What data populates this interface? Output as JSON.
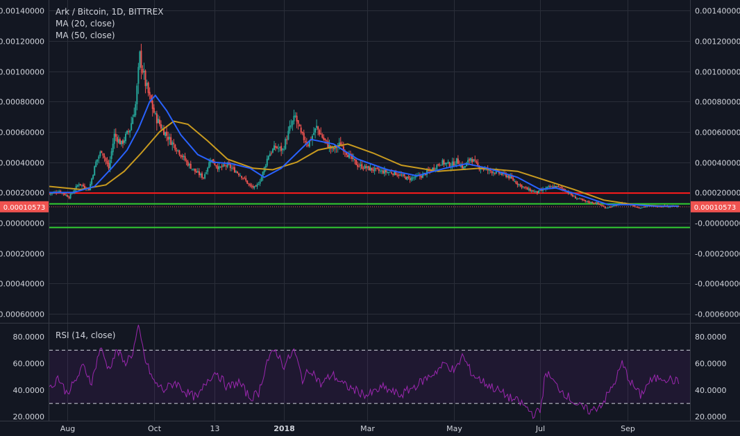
{
  "chart_data": {
    "type": "candlestick",
    "title": "Ark / Bitcoin, 1D, BITTREX",
    "indicators": [
      {
        "name": "MA (20, close)",
        "color": "#2962ff"
      },
      {
        "name": "MA (50, close)",
        "color": "#c99b1f"
      }
    ],
    "price_axis": {
      "ylim": [
        -0.00066,
        0.00147
      ],
      "ticks": [
        "0.00140000",
        "0.00120000",
        "0.00100000",
        "0.00080000",
        "0.00060000",
        "0.00040000",
        "0.00020000",
        "-0.00000000",
        "-0.00020000",
        "-0.00040000",
        "-0.00060000"
      ],
      "tick_values": [
        0.0014,
        0.0012,
        0.001,
        0.0008,
        0.0006,
        0.0004,
        0.0002,
        0,
        -0.0002,
        -0.0004,
        -0.0006
      ]
    },
    "time_axis": {
      "start": "2017-07-19",
      "end": "2018-10-15",
      "labels": [
        {
          "label": "Aug",
          "date": "2017-08-01"
        },
        {
          "label": "Oct",
          "date": "2017-10-01"
        },
        {
          "label": "13",
          "date": "2017-11-13"
        },
        {
          "label": "2018",
          "date": "2018-01-01",
          "bold": true
        },
        {
          "label": "Mar",
          "date": "2018-03-01"
        },
        {
          "label": "May",
          "date": "2018-05-01"
        },
        {
          "label": "Jul",
          "date": "2018-07-01"
        },
        {
          "label": "Sep",
          "date": "2018-09-01"
        }
      ]
    },
    "current_price": {
      "value": 0.00010573,
      "label": "0.00010573",
      "color": "#ef5350"
    },
    "colors": {
      "up": "#26a69a",
      "down": "#ef5350",
      "ma20": "#2962ff",
      "ma50": "#c99b1f",
      "rsi": "#9c27b0",
      "background": "#131722",
      "grid": "#2a2e39"
    },
    "horizontal_lines": [
      {
        "value": 0.000196,
        "color": "#ff1a1a"
      },
      {
        "value": 0.000125,
        "color": "#32cd32"
      },
      {
        "value": -3.05e-05,
        "color": "#32cd32"
      }
    ],
    "close_path": [
      {
        "date": "2017-07-19",
        "price": 0.00019
      },
      {
        "date": "2017-07-26",
        "price": 0.00021
      },
      {
        "date": "2017-08-02",
        "price": 0.00017
      },
      {
        "date": "2017-08-09",
        "price": 0.00026
      },
      {
        "date": "2017-08-16",
        "price": 0.00022
      },
      {
        "date": "2017-08-21",
        "price": 0.0004
      },
      {
        "date": "2017-08-25",
        "price": 0.00048
      },
      {
        "date": "2017-08-30",
        "price": 0.00036
      },
      {
        "date": "2017-09-03",
        "price": 0.00058
      },
      {
        "date": "2017-09-08",
        "price": 0.00052
      },
      {
        "date": "2017-09-14",
        "price": 0.00062
      },
      {
        "date": "2017-09-18",
        "price": 0.00078
      },
      {
        "date": "2017-09-21",
        "price": 0.0011
      },
      {
        "date": "2017-09-25",
        "price": 0.00092
      },
      {
        "date": "2017-09-28",
        "price": 0.00082
      },
      {
        "date": "2017-10-02",
        "price": 0.0007
      },
      {
        "date": "2017-10-07",
        "price": 0.00062
      },
      {
        "date": "2017-10-12",
        "price": 0.00055
      },
      {
        "date": "2017-10-18",
        "price": 0.00048
      },
      {
        "date": "2017-10-24",
        "price": 0.0004
      },
      {
        "date": "2017-10-30",
        "price": 0.00034
      },
      {
        "date": "2017-11-05",
        "price": 0.0003
      },
      {
        "date": "2017-11-10",
        "price": 0.00042
      },
      {
        "date": "2017-11-16",
        "price": 0.00036
      },
      {
        "date": "2017-11-22",
        "price": 0.00038
      },
      {
        "date": "2017-11-28",
        "price": 0.00034
      },
      {
        "date": "2017-12-03",
        "price": 0.0003
      },
      {
        "date": "2017-12-08",
        "price": 0.00024
      },
      {
        "date": "2017-12-12",
        "price": 0.00023
      },
      {
        "date": "2017-12-16",
        "price": 0.0003
      },
      {
        "date": "2017-12-21",
        "price": 0.00045
      },
      {
        "date": "2017-12-26",
        "price": 0.0005
      },
      {
        "date": "2017-12-31",
        "price": 0.00048
      },
      {
        "date": "2018-01-05",
        "price": 0.00062
      },
      {
        "date": "2018-01-09",
        "price": 0.0007
      },
      {
        "date": "2018-01-13",
        "price": 0.00058
      },
      {
        "date": "2018-01-18",
        "price": 0.00052
      },
      {
        "date": "2018-01-24",
        "price": 0.00063
      },
      {
        "date": "2018-01-29",
        "price": 0.00055
      },
      {
        "date": "2018-02-04",
        "price": 0.00048
      },
      {
        "date": "2018-02-10",
        "price": 0.00052
      },
      {
        "date": "2018-02-16",
        "price": 0.00044
      },
      {
        "date": "2018-02-22",
        "price": 0.00038
      },
      {
        "date": "2018-03-01",
        "price": 0.00036
      },
      {
        "date": "2018-03-10",
        "price": 0.00034
      },
      {
        "date": "2018-03-20",
        "price": 0.00033
      },
      {
        "date": "2018-03-30",
        "price": 0.00029
      },
      {
        "date": "2018-04-08",
        "price": 0.00031
      },
      {
        "date": "2018-04-15",
        "price": 0.00035
      },
      {
        "date": "2018-04-22",
        "price": 0.0004
      },
      {
        "date": "2018-04-29",
        "price": 0.00038
      },
      {
        "date": "2018-05-03",
        "price": 0.00041
      },
      {
        "date": "2018-05-08",
        "price": 0.00036
      },
      {
        "date": "2018-05-13",
        "price": 0.00043
      },
      {
        "date": "2018-05-18",
        "price": 0.00037
      },
      {
        "date": "2018-05-24",
        "price": 0.00035
      },
      {
        "date": "2018-06-01",
        "price": 0.00033
      },
      {
        "date": "2018-06-08",
        "price": 0.00031
      },
      {
        "date": "2018-06-15",
        "price": 0.00026
      },
      {
        "date": "2018-06-22",
        "price": 0.00022
      },
      {
        "date": "2018-06-29",
        "price": 0.0002
      },
      {
        "date": "2018-07-06",
        "price": 0.00023
      },
      {
        "date": "2018-07-12",
        "price": 0.00024
      },
      {
        "date": "2018-07-18",
        "price": 0.00022
      },
      {
        "date": "2018-07-25",
        "price": 0.00017
      },
      {
        "date": "2018-08-02",
        "price": 0.00014
      },
      {
        "date": "2018-08-10",
        "price": 0.00013
      },
      {
        "date": "2018-08-16",
        "price": 0.0001
      },
      {
        "date": "2018-08-22",
        "price": 0.00011
      },
      {
        "date": "2018-08-28",
        "price": 0.00013
      },
      {
        "date": "2018-09-03",
        "price": 0.00012
      },
      {
        "date": "2018-09-09",
        "price": 0.0001
      },
      {
        "date": "2018-09-15",
        "price": 0.00011
      },
      {
        "date": "2018-09-22",
        "price": 0.00011
      },
      {
        "date": "2018-09-29",
        "price": 0.00011
      },
      {
        "date": "2018-10-07",
        "price": 0.000106
      }
    ],
    "ma20": [
      {
        "date": "2017-07-19",
        "price": 0.0002
      },
      {
        "date": "2017-08-05",
        "price": 0.0002
      },
      {
        "date": "2017-08-20",
        "price": 0.00024
      },
      {
        "date": "2017-09-01",
        "price": 0.00036
      },
      {
        "date": "2017-09-12",
        "price": 0.00048
      },
      {
        "date": "2017-09-20",
        "price": 0.00062
      },
      {
        "date": "2017-09-28",
        "price": 0.0008
      },
      {
        "date": "2017-10-02",
        "price": 0.00084
      },
      {
        "date": "2017-10-10",
        "price": 0.00074
      },
      {
        "date": "2017-10-20",
        "price": 0.00058
      },
      {
        "date": "2017-11-01",
        "price": 0.00045
      },
      {
        "date": "2017-11-12",
        "price": 0.0004
      },
      {
        "date": "2017-11-25",
        "price": 0.00039
      },
      {
        "date": "2017-12-08",
        "price": 0.00036
      },
      {
        "date": "2017-12-18",
        "price": 0.0003
      },
      {
        "date": "2017-12-30",
        "price": 0.00036
      },
      {
        "date": "2018-01-10",
        "price": 0.00046
      },
      {
        "date": "2018-01-20",
        "price": 0.00055
      },
      {
        "date": "2018-02-05",
        "price": 0.00052
      },
      {
        "date": "2018-02-22",
        "price": 0.00042
      },
      {
        "date": "2018-03-15",
        "price": 0.00035
      },
      {
        "date": "2018-04-05",
        "price": 0.00031
      },
      {
        "date": "2018-04-25",
        "price": 0.00036
      },
      {
        "date": "2018-05-10",
        "price": 0.00039
      },
      {
        "date": "2018-05-25",
        "price": 0.00036
      },
      {
        "date": "2018-06-15",
        "price": 0.0003
      },
      {
        "date": "2018-07-01",
        "price": 0.00022
      },
      {
        "date": "2018-07-12",
        "price": 0.00023
      },
      {
        "date": "2018-07-30",
        "price": 0.00018
      },
      {
        "date": "2018-08-18",
        "price": 0.00012
      },
      {
        "date": "2018-09-05",
        "price": 0.00012
      },
      {
        "date": "2018-09-20",
        "price": 0.00011
      },
      {
        "date": "2018-10-07",
        "price": 0.00011
      }
    ],
    "ma50": [
      {
        "date": "2017-07-19",
        "price": 0.00024
      },
      {
        "date": "2017-08-10",
        "price": 0.00022
      },
      {
        "date": "2017-08-28",
        "price": 0.00025
      },
      {
        "date": "2017-09-10",
        "price": 0.00034
      },
      {
        "date": "2017-09-22",
        "price": 0.00046
      },
      {
        "date": "2017-10-05",
        "price": 0.0006
      },
      {
        "date": "2017-10-15",
        "price": 0.00067
      },
      {
        "date": "2017-10-25",
        "price": 0.00065
      },
      {
        "date": "2017-11-08",
        "price": 0.00054
      },
      {
        "date": "2017-11-22",
        "price": 0.00042
      },
      {
        "date": "2017-12-10",
        "price": 0.00036
      },
      {
        "date": "2017-12-24",
        "price": 0.00035
      },
      {
        "date": "2018-01-10",
        "price": 0.0004
      },
      {
        "date": "2018-01-25",
        "price": 0.00048
      },
      {
        "date": "2018-02-15",
        "price": 0.00052
      },
      {
        "date": "2018-03-05",
        "price": 0.00046
      },
      {
        "date": "2018-03-25",
        "price": 0.00038
      },
      {
        "date": "2018-04-20",
        "price": 0.00034
      },
      {
        "date": "2018-05-20",
        "price": 0.00036
      },
      {
        "date": "2018-06-15",
        "price": 0.00034
      },
      {
        "date": "2018-07-05",
        "price": 0.00028
      },
      {
        "date": "2018-07-25",
        "price": 0.00022
      },
      {
        "date": "2018-08-15",
        "price": 0.00015
      },
      {
        "date": "2018-09-05",
        "price": 0.00012
      },
      {
        "date": "2018-09-25",
        "price": 0.00011
      },
      {
        "date": "2018-10-07",
        "price": 0.00011
      }
    ],
    "rsi": {
      "label": "RSI (14, close)",
      "ylim": [
        17,
        90
      ],
      "ticks": [
        "80.0000",
        "60.0000",
        "40.0000",
        "20.0000"
      ],
      "tick_values": [
        80,
        60,
        40,
        20
      ],
      "upper_band": 70,
      "lower_band": 30,
      "path": [
        {
          "date": "2017-07-19",
          "value": 40
        },
        {
          "date": "2017-07-25",
          "value": 50
        },
        {
          "date": "2017-07-31",
          "value": 38
        },
        {
          "date": "2017-08-05",
          "value": 44
        },
        {
          "date": "2017-08-12",
          "value": 58
        },
        {
          "date": "2017-08-18",
          "value": 46
        },
        {
          "date": "2017-08-24",
          "value": 72
        },
        {
          "date": "2017-08-30",
          "value": 56
        },
        {
          "date": "2017-09-05",
          "value": 70
        },
        {
          "date": "2017-09-10",
          "value": 60
        },
        {
          "date": "2017-09-16",
          "value": 68
        },
        {
          "date": "2017-09-20",
          "value": 87
        },
        {
          "date": "2017-09-25",
          "value": 62
        },
        {
          "date": "2017-10-01",
          "value": 46
        },
        {
          "date": "2017-10-08",
          "value": 40
        },
        {
          "date": "2017-10-16",
          "value": 46
        },
        {
          "date": "2017-10-24",
          "value": 38
        },
        {
          "date": "2017-11-01",
          "value": 34
        },
        {
          "date": "2017-11-08",
          "value": 48
        },
        {
          "date": "2017-11-14",
          "value": 54
        },
        {
          "date": "2017-11-22",
          "value": 42
        },
        {
          "date": "2017-11-30",
          "value": 46
        },
        {
          "date": "2017-12-08",
          "value": 34
        },
        {
          "date": "2017-12-14",
          "value": 38
        },
        {
          "date": "2017-12-20",
          "value": 62
        },
        {
          "date": "2017-12-26",
          "value": 70
        },
        {
          "date": "2018-01-01",
          "value": 58
        },
        {
          "date": "2018-01-08",
          "value": 70
        },
        {
          "date": "2018-01-14",
          "value": 48
        },
        {
          "date": "2018-01-20",
          "value": 56
        },
        {
          "date": "2018-01-27",
          "value": 44
        },
        {
          "date": "2018-02-04",
          "value": 52
        },
        {
          "date": "2018-02-12",
          "value": 44
        },
        {
          "date": "2018-02-20",
          "value": 40
        },
        {
          "date": "2018-03-01",
          "value": 36
        },
        {
          "date": "2018-03-12",
          "value": 42
        },
        {
          "date": "2018-03-24",
          "value": 36
        },
        {
          "date": "2018-04-05",
          "value": 44
        },
        {
          "date": "2018-04-16",
          "value": 52
        },
        {
          "date": "2018-04-25",
          "value": 60
        },
        {
          "date": "2018-05-02",
          "value": 54
        },
        {
          "date": "2018-05-07",
          "value": 66
        },
        {
          "date": "2018-05-14",
          "value": 52
        },
        {
          "date": "2018-05-22",
          "value": 46
        },
        {
          "date": "2018-06-01",
          "value": 40
        },
        {
          "date": "2018-06-10",
          "value": 34
        },
        {
          "date": "2018-06-18",
          "value": 30
        },
        {
          "date": "2018-06-26",
          "value": 22
        },
        {
          "date": "2018-07-01",
          "value": 24
        },
        {
          "date": "2018-07-05",
          "value": 54
        },
        {
          "date": "2018-07-12",
          "value": 44
        },
        {
          "date": "2018-07-20",
          "value": 36
        },
        {
          "date": "2018-07-28",
          "value": 28
        },
        {
          "date": "2018-08-06",
          "value": 24
        },
        {
          "date": "2018-08-14",
          "value": 30
        },
        {
          "date": "2018-08-22",
          "value": 44
        },
        {
          "date": "2018-08-28",
          "value": 60
        },
        {
          "date": "2018-09-03",
          "value": 46
        },
        {
          "date": "2018-09-10",
          "value": 36
        },
        {
          "date": "2018-09-16",
          "value": 46
        },
        {
          "date": "2018-09-24",
          "value": 50
        },
        {
          "date": "2018-10-01",
          "value": 48
        },
        {
          "date": "2018-10-07",
          "value": 46
        }
      ]
    }
  }
}
